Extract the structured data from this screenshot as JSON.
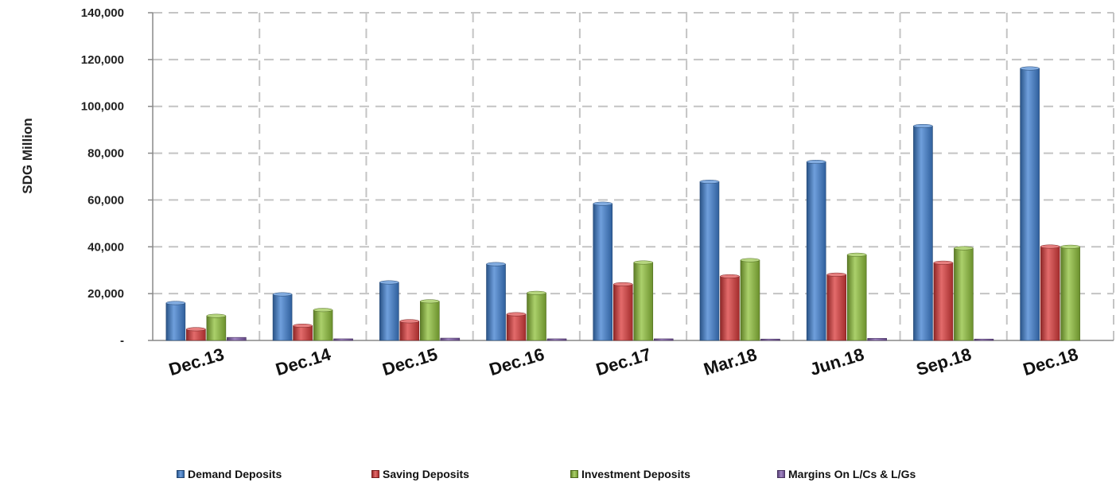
{
  "chart_data": {
    "type": "bar",
    "title": "",
    "ylabel": "SDG Million",
    "xlabel": "",
    "categories": [
      "Dec.13",
      "Dec.14",
      "Dec.15",
      "Dec.16",
      "Dec.17",
      "Mar.18",
      "Jun.18",
      "Sep.18",
      "Dec.18"
    ],
    "series": [
      {
        "name": "Demand Deposits",
        "color": "#3f7fd0",
        "values": [
          16000,
          19700,
          24800,
          32600,
          58400,
          67800,
          76300,
          91600,
          116200
        ]
      },
      {
        "name": "Saving Deposits",
        "color": "#d93a3a",
        "values": [
          4800,
          6300,
          8200,
          11200,
          24000,
          27400,
          28100,
          33200,
          40100
        ]
      },
      {
        "name": "Investment Deposits",
        "color": "#8fc03a",
        "values": [
          10500,
          13000,
          16700,
          20300,
          33300,
          34300,
          36600,
          39400,
          40000
        ]
      },
      {
        "name": "Margins On L/Cs & L/Gs",
        "color": "#8460b0",
        "values": [
          1300,
          700,
          1000,
          700,
          700,
          600,
          900,
          600,
          0
        ]
      }
    ],
    "ylim": [
      0,
      140000
    ],
    "yticks": [
      0,
      20000,
      40000,
      60000,
      80000,
      100000,
      120000,
      140000
    ],
    "ytick_labels": [
      "-",
      "20,000",
      "40,000",
      "60,000",
      "80,000",
      "100,000",
      "120,000",
      "140,000"
    ],
    "grid": true,
    "legend_position": "bottom"
  }
}
